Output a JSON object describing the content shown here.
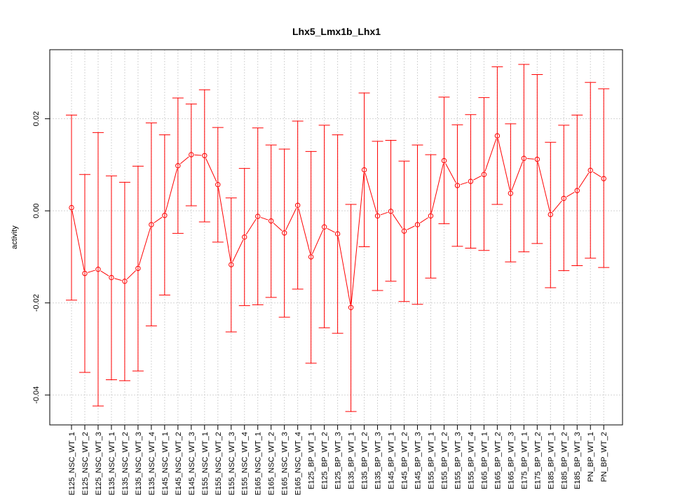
{
  "chart_data": {
    "type": "line",
    "title": "Lhx5_Lmx1b_Lhx1",
    "xlabel": "",
    "ylabel": "activity",
    "ylim": [
      -0.0465,
      0.035
    ],
    "yticks": [
      -0.04,
      -0.02,
      0.0,
      0.02
    ],
    "ytick_labels": [
      "-0.04",
      "-0.02",
      "0.00",
      "0.02"
    ],
    "grid": true,
    "line_color": "#ff0000",
    "grid_color": "#d3d3d3",
    "categories": [
      "E125_NSC_WT_1",
      "E125_NSC_WT_2",
      "E125_NSC_WT_3",
      "E135_NSC_WT_1",
      "E135_NSC_WT_2",
      "E135_NSC_WT_3",
      "E135_NSC_WT_4",
      "E145_NSC_WT_1",
      "E145_NSC_WT_2",
      "E145_NSC_WT_3",
      "E155_NSC_WT_1",
      "E155_NSC_WT_2",
      "E155_NSC_WT_3",
      "E155_NSC_WT_4",
      "E165_NSC_WT_1",
      "E165_NSC_WT_2",
      "E165_NSC_WT_3",
      "E165_NSC_WT_4",
      "E125_BP_WT_1",
      "E125_BP_WT_2",
      "E125_BP_WT_3",
      "E135_BP_WT_1",
      "E135_BP_WT_2",
      "E135_BP_WT_3",
      "E145_BP_WT_1",
      "E145_BP_WT_2",
      "E145_BP_WT_3",
      "E155_BP_WT_1",
      "E155_BP_WT_2",
      "E155_BP_WT_3",
      "E155_BP_WT_4",
      "E165_BP_WT_1",
      "E165_BP_WT_2",
      "E165_BP_WT_3",
      "E175_BP_WT_1",
      "E175_BP_WT_2",
      "E185_BP_WT_1",
      "E185_BP_WT_2",
      "E185_BP_WT_3",
      "PN_BP_WT_1",
      "PN_BP_WT_2"
    ],
    "values": [
      0.0007,
      -0.0136,
      -0.0127,
      -0.0145,
      -0.0153,
      -0.0125,
      -0.003,
      -0.001,
      0.0098,
      0.0122,
      0.012,
      0.0057,
      -0.0117,
      -0.0057,
      -0.0012,
      -0.0022,
      -0.0048,
      0.0012,
      -0.01,
      -0.0035,
      -0.005,
      -0.021,
      0.0089,
      -0.0011,
      -0.0001,
      -0.0044,
      -0.003,
      -0.0011,
      0.0109,
      0.0055,
      0.0064,
      0.0079,
      0.0163,
      0.0038,
      0.0114,
      0.0112,
      -0.0008,
      0.0027,
      0.0044,
      0.0088,
      0.007
    ],
    "upper": [
      0.0208,
      0.0079,
      0.017,
      0.0076,
      0.0062,
      0.0097,
      0.0191,
      0.0165,
      0.0245,
      0.0232,
      0.0263,
      0.0181,
      0.0028,
      0.0092,
      0.018,
      0.0143,
      0.0134,
      0.0195,
      0.0129,
      0.0186,
      0.0165,
      0.0014,
      0.0256,
      0.0151,
      0.0153,
      0.0108,
      0.0143,
      0.0122,
      0.0247,
      0.0187,
      0.0209,
      0.0246,
      0.0313,
      0.0189,
      0.0318,
      0.0296,
      0.0149,
      0.0186,
      0.0208,
      0.0279,
      0.0265
    ],
    "lower": [
      -0.0194,
      -0.0351,
      -0.0424,
      -0.0367,
      -0.0369,
      -0.0348,
      -0.025,
      -0.0183,
      -0.0049,
      0.0011,
      -0.0024,
      -0.0068,
      -0.0263,
      -0.0206,
      -0.0204,
      -0.0188,
      -0.0231,
      -0.017,
      -0.0331,
      -0.0254,
      -0.0266,
      -0.0436,
      -0.0078,
      -0.0173,
      -0.0153,
      -0.0197,
      -0.0203,
      -0.0146,
      -0.0028,
      -0.0077,
      -0.0081,
      -0.0086,
      0.0014,
      -0.0111,
      -0.0089,
      -0.0071,
      -0.0167,
      -0.013,
      -0.0119,
      -0.0103,
      -0.0123
    ]
  }
}
